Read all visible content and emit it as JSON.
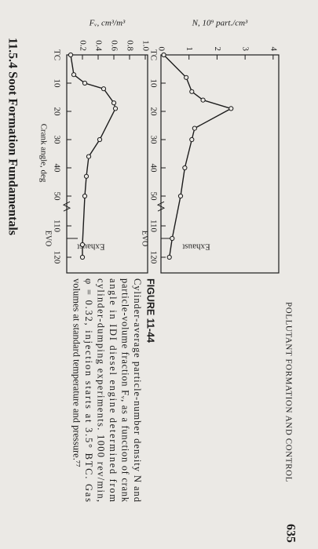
{
  "header": {
    "running_title": "POLLUTANT FORMATION AND CONTROL",
    "page_number": "635"
  },
  "caption": {
    "label": "FIGURE 11-44",
    "lines": [
      "Cylinder-average particle-number density N and",
      "particle-volume fraction Fᵥ, as a function of crank",
      "angle in IDI diesel engine determined from",
      "cylinder-dumping experiments. 1000 rev/min,",
      "φ = 0.32, injection starts at 3.5° BTC. Gas",
      "volumes at standard temperature and pressure.⁷⁷"
    ]
  },
  "section": {
    "title": "11.5.4 Soot Formation Fundamentals"
  },
  "chart_data": [
    {
      "type": "line",
      "ylabel": "N, 10⁹ part./cm³",
      "x": [
        0,
        8,
        13,
        16,
        19,
        26,
        30,
        40,
        50,
        114,
        120
      ],
      "series": [
        {
          "name": "N",
          "color": "#1c1c1c",
          "values": [
            0.1,
            0.9,
            1.1,
            1.5,
            2.5,
            1.2,
            1.1,
            0.85,
            0.7,
            0.4,
            0.3
          ]
        }
      ],
      "xlim": [
        0,
        125
      ],
      "ylim": [
        0,
        4.2
      ],
      "xticks": [
        {
          "value": 0,
          "label": "TC"
        },
        10,
        20,
        30,
        40,
        50,
        110,
        120
      ],
      "yticks": [
        0,
        1,
        2,
        3,
        4
      ],
      "annotations": [
        "Exhaust",
        "EVO"
      ]
    },
    {
      "type": "line",
      "ylabel": "Fᵥ, cm³/m³",
      "xlabel": "Crank angle, deg",
      "x": [
        0,
        7,
        10,
        12,
        17,
        19,
        30,
        36,
        43,
        50,
        116,
        120
      ],
      "series": [
        {
          "name": "Fᵥ",
          "color": "#1c1c1c",
          "values": [
            0.05,
            0.09,
            0.23,
            0.47,
            0.6,
            0.62,
            0.42,
            0.28,
            0.25,
            0.23,
            0.2,
            0.2
          ]
        }
      ],
      "xlim": [
        0,
        125
      ],
      "ylim": [
        0,
        1.03
      ],
      "xticks": [
        {
          "value": 0,
          "label": "TC"
        },
        10,
        20,
        30,
        40,
        50,
        110,
        120
      ],
      "yticks": [
        {
          "value": 0.2,
          "label": "0.2"
        },
        0.4,
        0.6,
        0.8,
        {
          "value": 1,
          "label": "1.0"
        }
      ],
      "annotations": [
        "Exhaust",
        "EVO"
      ]
    }
  ]
}
